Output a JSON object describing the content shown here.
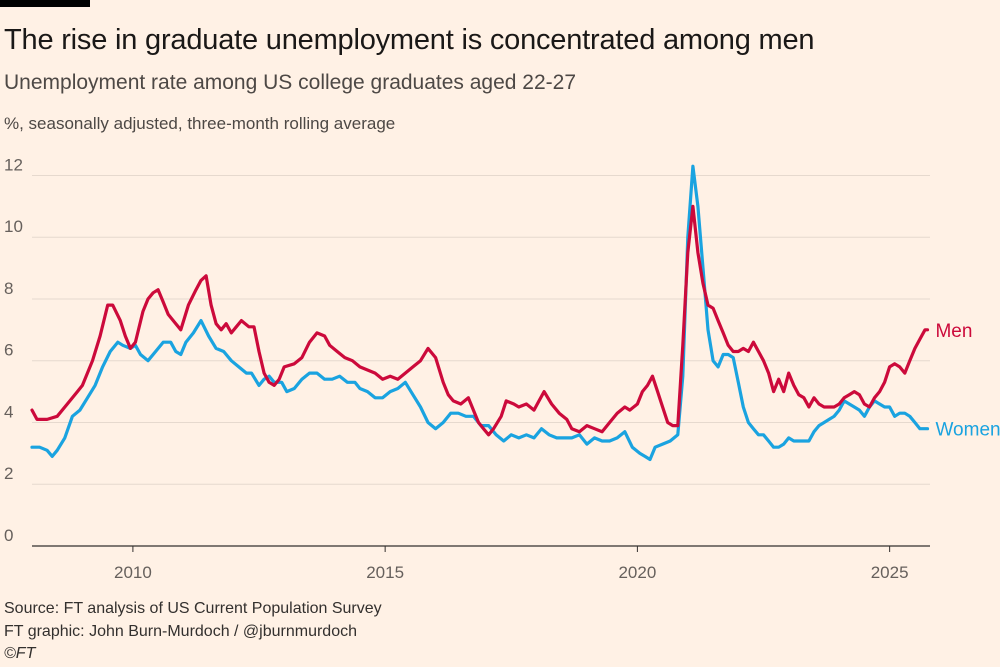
{
  "header": {
    "title": "The rise in graduate unemployment is concentrated among men",
    "subtitle": "Unemployment rate among US college graduates aged 22-27",
    "unit_note": "%, seasonally adjusted, three-month rolling average"
  },
  "footer": {
    "source": "Source: FT analysis of US Current Population Survey",
    "credit": "FT graphic: John Burn-Murdoch / @jburnmurdoch",
    "copyright": "©FT"
  },
  "colors": {
    "background": "#fff1e5",
    "men": "#cc0a3b",
    "women": "#1aa3e0",
    "grid": "#e6d9ce",
    "axis": "#33302e"
  },
  "chart_data": {
    "type": "line",
    "title": "The rise in graduate unemployment is concentrated among men",
    "subtitle": "Unemployment rate among US college graduates aged 22-27",
    "ylabel": "%, seasonally adjusted, three-month rolling average",
    "xlabel": "",
    "xlim": [
      2008.0,
      2025.8
    ],
    "ylim": [
      0,
      12.5
    ],
    "yticks": [
      0,
      2,
      4,
      6,
      8,
      10,
      12
    ],
    "ytick_labels": [
      "0",
      "2",
      "4",
      "6",
      "8",
      "10",
      "12"
    ],
    "xticks": [
      2010,
      2015,
      2020,
      2025
    ],
    "xtick_labels": [
      "2010",
      "2015",
      "2020",
      "2025"
    ],
    "grid": true,
    "legend": "direct labels at line ends",
    "series": [
      {
        "name": "Men",
        "color": "#cc0a3b",
        "points": [
          [
            2008.0,
            4.4
          ],
          [
            2008.1,
            4.1
          ],
          [
            2008.3,
            4.1
          ],
          [
            2008.5,
            4.2
          ],
          [
            2008.7,
            4.6
          ],
          [
            2008.9,
            5.0
          ],
          [
            2009.0,
            5.2
          ],
          [
            2009.2,
            6.0
          ],
          [
            2009.35,
            6.8
          ],
          [
            2009.5,
            7.8
          ],
          [
            2009.6,
            7.8
          ],
          [
            2009.75,
            7.3
          ],
          [
            2009.85,
            6.8
          ],
          [
            2009.95,
            6.4
          ],
          [
            2010.05,
            6.6
          ],
          [
            2010.2,
            7.6
          ],
          [
            2010.3,
            8.0
          ],
          [
            2010.4,
            8.2
          ],
          [
            2010.5,
            8.3
          ],
          [
            2010.6,
            7.9
          ],
          [
            2010.7,
            7.5
          ],
          [
            2010.85,
            7.2
          ],
          [
            2010.95,
            7.0
          ],
          [
            2011.1,
            7.8
          ],
          [
            2011.25,
            8.3
          ],
          [
            2011.35,
            8.6
          ],
          [
            2011.45,
            8.75
          ],
          [
            2011.55,
            7.8
          ],
          [
            2011.65,
            7.2
          ],
          [
            2011.75,
            7.0
          ],
          [
            2011.85,
            7.2
          ],
          [
            2011.95,
            6.9
          ],
          [
            2012.05,
            7.1
          ],
          [
            2012.15,
            7.3
          ],
          [
            2012.3,
            7.1
          ],
          [
            2012.4,
            7.1
          ],
          [
            2012.5,
            6.3
          ],
          [
            2012.6,
            5.6
          ],
          [
            2012.7,
            5.3
          ],
          [
            2012.8,
            5.2
          ],
          [
            2012.9,
            5.4
          ],
          [
            2013.0,
            5.8
          ],
          [
            2013.2,
            5.9
          ],
          [
            2013.35,
            6.1
          ],
          [
            2013.5,
            6.6
          ],
          [
            2013.65,
            6.9
          ],
          [
            2013.8,
            6.8
          ],
          [
            2013.9,
            6.5
          ],
          [
            2014.05,
            6.3
          ],
          [
            2014.2,
            6.1
          ],
          [
            2014.35,
            6.0
          ],
          [
            2014.5,
            5.8
          ],
          [
            2014.65,
            5.7
          ],
          [
            2014.8,
            5.6
          ],
          [
            2014.95,
            5.4
          ],
          [
            2015.1,
            5.5
          ],
          [
            2015.25,
            5.4
          ],
          [
            2015.4,
            5.6
          ],
          [
            2015.55,
            5.8
          ],
          [
            2015.7,
            6.0
          ],
          [
            2015.85,
            6.4
          ],
          [
            2016.0,
            6.1
          ],
          [
            2016.15,
            5.3
          ],
          [
            2016.25,
            4.9
          ],
          [
            2016.35,
            4.7
          ],
          [
            2016.5,
            4.6
          ],
          [
            2016.65,
            4.8
          ],
          [
            2016.75,
            4.4
          ],
          [
            2016.85,
            4.0
          ],
          [
            2016.95,
            3.8
          ],
          [
            2017.05,
            3.6
          ],
          [
            2017.15,
            3.8
          ],
          [
            2017.3,
            4.2
          ],
          [
            2017.4,
            4.7
          ],
          [
            2017.55,
            4.6
          ],
          [
            2017.65,
            4.5
          ],
          [
            2017.8,
            4.6
          ],
          [
            2017.95,
            4.4
          ],
          [
            2018.05,
            4.7
          ],
          [
            2018.15,
            5.0
          ],
          [
            2018.3,
            4.6
          ],
          [
            2018.45,
            4.3
          ],
          [
            2018.6,
            4.1
          ],
          [
            2018.7,
            3.8
          ],
          [
            2018.85,
            3.7
          ],
          [
            2019.0,
            3.9
          ],
          [
            2019.15,
            3.8
          ],
          [
            2019.3,
            3.7
          ],
          [
            2019.45,
            4.0
          ],
          [
            2019.6,
            4.3
          ],
          [
            2019.75,
            4.5
          ],
          [
            2019.85,
            4.4
          ],
          [
            2020.0,
            4.6
          ],
          [
            2020.1,
            5.0
          ],
          [
            2020.2,
            5.2
          ],
          [
            2020.3,
            5.5
          ],
          [
            2020.4,
            5.0
          ],
          [
            2020.5,
            4.5
          ],
          [
            2020.6,
            4.0
          ],
          [
            2020.7,
            3.9
          ],
          [
            2020.8,
            3.9
          ],
          [
            2020.9,
            6.5
          ],
          [
            2021.0,
            9.5
          ],
          [
            2021.1,
            11.0
          ],
          [
            2021.2,
            9.5
          ],
          [
            2021.3,
            8.5
          ],
          [
            2021.4,
            7.8
          ],
          [
            2021.5,
            7.7
          ],
          [
            2021.6,
            7.3
          ],
          [
            2021.7,
            6.9
          ],
          [
            2021.8,
            6.5
          ],
          [
            2021.9,
            6.3
          ],
          [
            2022.0,
            6.3
          ],
          [
            2022.1,
            6.4
          ],
          [
            2022.2,
            6.3
          ],
          [
            2022.3,
            6.6
          ],
          [
            2022.4,
            6.3
          ],
          [
            2022.5,
            6.0
          ],
          [
            2022.6,
            5.6
          ],
          [
            2022.7,
            5.0
          ],
          [
            2022.8,
            5.4
          ],
          [
            2022.9,
            5.0
          ],
          [
            2023.0,
            5.6
          ],
          [
            2023.1,
            5.2
          ],
          [
            2023.2,
            4.9
          ],
          [
            2023.3,
            4.8
          ],
          [
            2023.4,
            4.5
          ],
          [
            2023.5,
            4.8
          ],
          [
            2023.6,
            4.6
          ],
          [
            2023.7,
            4.5
          ],
          [
            2023.8,
            4.5
          ],
          [
            2023.9,
            4.5
          ],
          [
            2024.0,
            4.6
          ],
          [
            2024.1,
            4.8
          ],
          [
            2024.2,
            4.9
          ],
          [
            2024.3,
            5.0
          ],
          [
            2024.4,
            4.9
          ],
          [
            2024.5,
            4.6
          ],
          [
            2024.6,
            4.5
          ],
          [
            2024.7,
            4.8
          ],
          [
            2024.8,
            5.0
          ],
          [
            2024.9,
            5.3
          ],
          [
            2025.0,
            5.8
          ],
          [
            2025.1,
            5.9
          ],
          [
            2025.2,
            5.8
          ],
          [
            2025.3,
            5.6
          ],
          [
            2025.4,
            6.0
          ],
          [
            2025.5,
            6.4
          ],
          [
            2025.6,
            6.7
          ],
          [
            2025.7,
            7.0
          ],
          [
            2025.75,
            7.0
          ]
        ]
      },
      {
        "name": "Women",
        "color": "#1aa3e0",
        "points": [
          [
            2008.0,
            3.2
          ],
          [
            2008.15,
            3.2
          ],
          [
            2008.3,
            3.1
          ],
          [
            2008.4,
            2.9
          ],
          [
            2008.5,
            3.1
          ],
          [
            2008.65,
            3.5
          ],
          [
            2008.8,
            4.2
          ],
          [
            2008.95,
            4.4
          ],
          [
            2009.1,
            4.8
          ],
          [
            2009.25,
            5.2
          ],
          [
            2009.4,
            5.8
          ],
          [
            2009.55,
            6.3
          ],
          [
            2009.7,
            6.6
          ],
          [
            2009.8,
            6.5
          ],
          [
            2009.95,
            6.4
          ],
          [
            2010.05,
            6.5
          ],
          [
            2010.15,
            6.2
          ],
          [
            2010.3,
            6.0
          ],
          [
            2010.45,
            6.3
          ],
          [
            2010.6,
            6.6
          ],
          [
            2010.75,
            6.6
          ],
          [
            2010.85,
            6.3
          ],
          [
            2010.95,
            6.2
          ],
          [
            2011.05,
            6.6
          ],
          [
            2011.2,
            6.9
          ],
          [
            2011.35,
            7.3
          ],
          [
            2011.5,
            6.8
          ],
          [
            2011.65,
            6.4
          ],
          [
            2011.8,
            6.3
          ],
          [
            2011.95,
            6.0
          ],
          [
            2012.1,
            5.8
          ],
          [
            2012.25,
            5.6
          ],
          [
            2012.35,
            5.6
          ],
          [
            2012.5,
            5.2
          ],
          [
            2012.6,
            5.4
          ],
          [
            2012.7,
            5.5
          ],
          [
            2012.8,
            5.3
          ],
          [
            2012.95,
            5.3
          ],
          [
            2013.05,
            5.0
          ],
          [
            2013.2,
            5.1
          ],
          [
            2013.35,
            5.4
          ],
          [
            2013.5,
            5.6
          ],
          [
            2013.65,
            5.6
          ],
          [
            2013.8,
            5.4
          ],
          [
            2013.95,
            5.4
          ],
          [
            2014.1,
            5.5
          ],
          [
            2014.25,
            5.3
          ],
          [
            2014.4,
            5.3
          ],
          [
            2014.5,
            5.1
          ],
          [
            2014.65,
            5.0
          ],
          [
            2014.8,
            4.8
          ],
          [
            2014.95,
            4.8
          ],
          [
            2015.1,
            5.0
          ],
          [
            2015.25,
            5.1
          ],
          [
            2015.4,
            5.3
          ],
          [
            2015.55,
            4.9
          ],
          [
            2015.7,
            4.5
          ],
          [
            2015.85,
            4.0
          ],
          [
            2016.0,
            3.8
          ],
          [
            2016.15,
            4.0
          ],
          [
            2016.3,
            4.3
          ],
          [
            2016.45,
            4.3
          ],
          [
            2016.6,
            4.2
          ],
          [
            2016.75,
            4.2
          ],
          [
            2016.9,
            3.9
          ],
          [
            2017.05,
            3.9
          ],
          [
            2017.2,
            3.6
          ],
          [
            2017.35,
            3.4
          ],
          [
            2017.5,
            3.6
          ],
          [
            2017.65,
            3.5
          ],
          [
            2017.8,
            3.6
          ],
          [
            2017.95,
            3.5
          ],
          [
            2018.1,
            3.8
          ],
          [
            2018.25,
            3.6
          ],
          [
            2018.4,
            3.5
          ],
          [
            2018.55,
            3.5
          ],
          [
            2018.7,
            3.5
          ],
          [
            2018.85,
            3.6
          ],
          [
            2019.0,
            3.3
          ],
          [
            2019.15,
            3.5
          ],
          [
            2019.3,
            3.4
          ],
          [
            2019.45,
            3.4
          ],
          [
            2019.6,
            3.5
          ],
          [
            2019.75,
            3.7
          ],
          [
            2019.9,
            3.2
          ],
          [
            2020.05,
            3.0
          ],
          [
            2020.15,
            2.9
          ],
          [
            2020.25,
            2.8
          ],
          [
            2020.35,
            3.2
          ],
          [
            2020.5,
            3.3
          ],
          [
            2020.65,
            3.4
          ],
          [
            2020.8,
            3.6
          ],
          [
            2020.9,
            5.5
          ],
          [
            2021.0,
            10.0
          ],
          [
            2021.1,
            12.3
          ],
          [
            2021.2,
            11.0
          ],
          [
            2021.3,
            9.0
          ],
          [
            2021.4,
            7.0
          ],
          [
            2021.5,
            6.0
          ],
          [
            2021.6,
            5.8
          ],
          [
            2021.7,
            6.2
          ],
          [
            2021.8,
            6.2
          ],
          [
            2021.9,
            6.1
          ],
          [
            2022.0,
            5.3
          ],
          [
            2022.1,
            4.5
          ],
          [
            2022.2,
            4.0
          ],
          [
            2022.3,
            3.8
          ],
          [
            2022.4,
            3.6
          ],
          [
            2022.5,
            3.6
          ],
          [
            2022.6,
            3.4
          ],
          [
            2022.7,
            3.2
          ],
          [
            2022.8,
            3.2
          ],
          [
            2022.9,
            3.3
          ],
          [
            2023.0,
            3.5
          ],
          [
            2023.1,
            3.4
          ],
          [
            2023.2,
            3.4
          ],
          [
            2023.3,
            3.4
          ],
          [
            2023.4,
            3.4
          ],
          [
            2023.5,
            3.7
          ],
          [
            2023.6,
            3.9
          ],
          [
            2023.7,
            4.0
          ],
          [
            2023.8,
            4.1
          ],
          [
            2023.9,
            4.2
          ],
          [
            2024.0,
            4.4
          ],
          [
            2024.1,
            4.7
          ],
          [
            2024.2,
            4.6
          ],
          [
            2024.3,
            4.5
          ],
          [
            2024.4,
            4.4
          ],
          [
            2024.5,
            4.2
          ],
          [
            2024.6,
            4.5
          ],
          [
            2024.7,
            4.7
          ],
          [
            2024.8,
            4.6
          ],
          [
            2024.9,
            4.5
          ],
          [
            2025.0,
            4.5
          ],
          [
            2025.1,
            4.2
          ],
          [
            2025.2,
            4.3
          ],
          [
            2025.3,
            4.3
          ],
          [
            2025.4,
            4.2
          ],
          [
            2025.5,
            4.0
          ],
          [
            2025.6,
            3.8
          ],
          [
            2025.75,
            3.8
          ]
        ]
      }
    ]
  }
}
